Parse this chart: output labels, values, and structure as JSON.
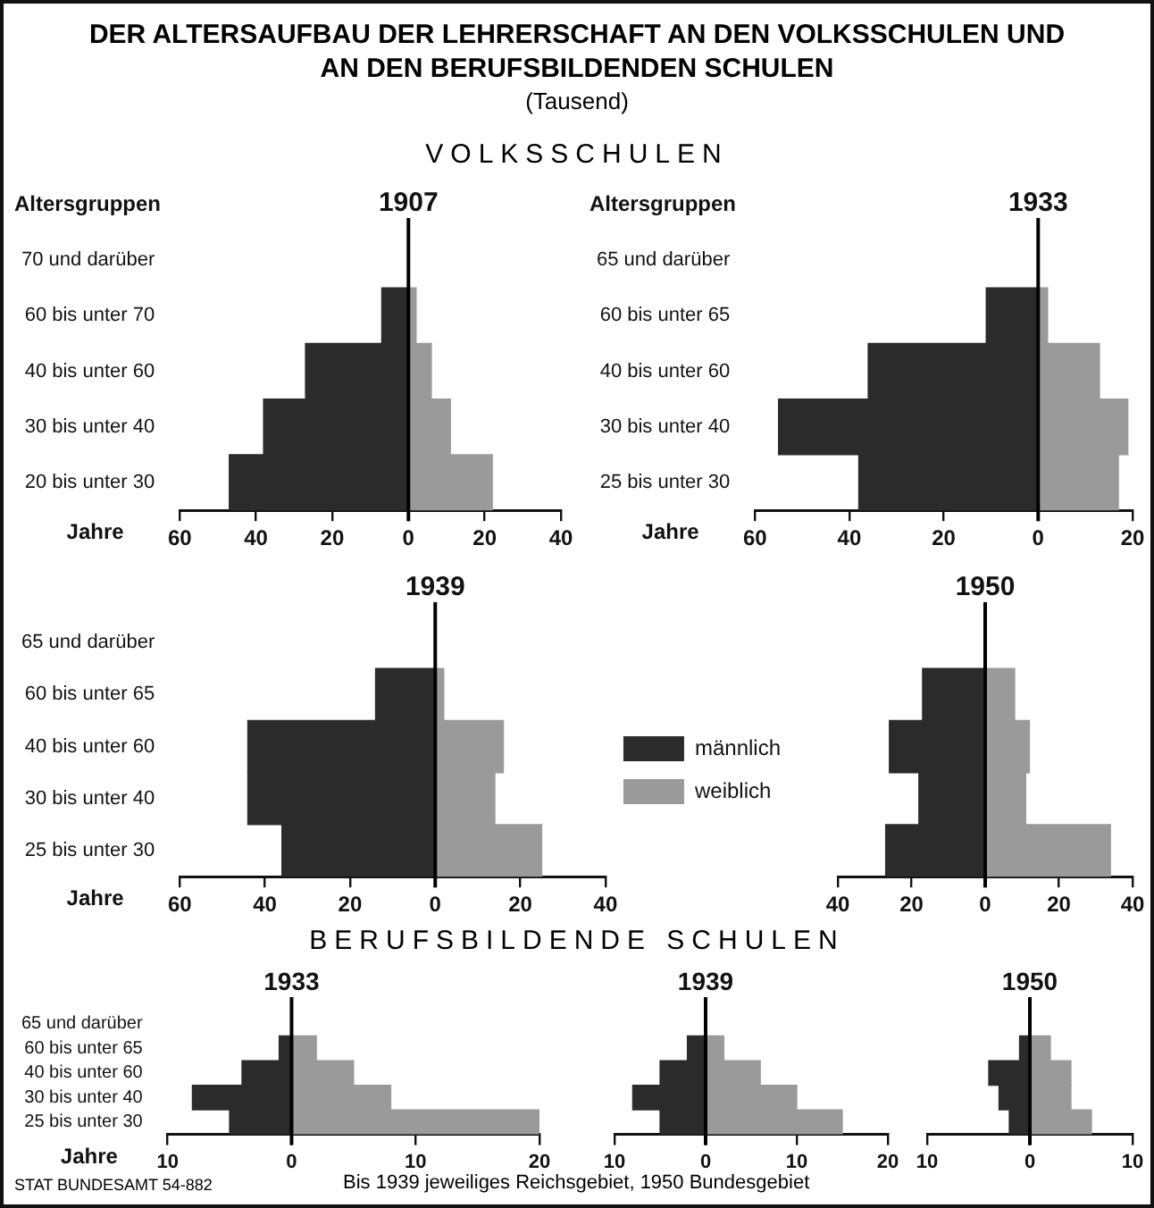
{
  "chart_data": [
    {
      "type": "other",
      "title": "DER ALTERSAUFBAU DER LEHRERSCHAFT AN DEN VOLKSSCHULEN UND AN DEN BERUFSBILDENDEN SCHULEN",
      "subtitle": "(Tausend)",
      "annotations": [
        "VOLKSSCHULEN",
        "BERUFSBILDENDE SCHULEN",
        "STAT BUNDESAMT 54-882",
        "Bis 1939 jeweiliges Reichsgebiet, 1950 Bundesgebiet"
      ]
    },
    {
      "type": "bar",
      "orientation": "horizontal",
      "stacked": true,
      "title": "1907",
      "ylabel": "Altersgruppen",
      "annotations": [
        "Jahre"
      ],
      "categories": [
        "70 und darüber",
        "60 bis unter 70",
        "40 bis unter 60",
        "30 bis unter 40",
        "20 bis unter 30"
      ],
      "series": [
        {
          "color": "#2b2b2b",
          "values": [
            0,
            -7,
            -27,
            -38,
            -47
          ]
        },
        {
          "color": "#9a9a9a",
          "values": [
            0,
            2,
            6,
            11,
            22
          ]
        }
      ],
      "xlim": [
        -60,
        40
      ],
      "xticks": [
        {
          "value": -60,
          "label": "60"
        },
        {
          "value": -40,
          "label": "40"
        },
        {
          "value": -20,
          "label": "20"
        },
        0,
        20,
        40
      ],
      "ref_lines": [
        {
          "axis": "x",
          "value": 0
        }
      ],
      "grid": false,
      "legend": false
    },
    {
      "type": "bar",
      "orientation": "horizontal",
      "stacked": true,
      "title": "1933",
      "ylabel": "Altersgruppen",
      "annotations": [
        "Jahre"
      ],
      "categories": [
        "65 und darüber",
        "60 bis unter 65",
        "40 bis unter 60",
        "30 bis unter 40",
        "25 bis unter 30"
      ],
      "series": [
        {
          "color": "#2b2b2b",
          "values": [
            0,
            -11,
            -36,
            -55,
            -38
          ]
        },
        {
          "color": "#9a9a9a",
          "values": [
            0,
            2,
            13,
            19,
            17
          ]
        }
      ],
      "xlim": [
        -60,
        20
      ],
      "xticks": [
        {
          "value": -60,
          "label": "60"
        },
        {
          "value": -40,
          "label": "40"
        },
        {
          "value": -20,
          "label": "20"
        },
        0,
        20
      ],
      "ref_lines": [
        {
          "axis": "x",
          "value": 0
        }
      ],
      "grid": false,
      "legend": false
    },
    {
      "type": "bar",
      "orientation": "horizontal",
      "stacked": true,
      "title": "1939",
      "annotations": [
        "Jahre"
      ],
      "categories": [
        "65 und darüber",
        "60 bis unter 65",
        "40 bis unter 60",
        "30 bis unter 40",
        "25 bis unter 30"
      ],
      "series": [
        {
          "name": "männlich",
          "color": "#2b2b2b",
          "values": [
            0,
            -14,
            -44,
            -44,
            -36
          ]
        },
        {
          "name": "weiblich",
          "color": "#9a9a9a",
          "values": [
            0,
            2,
            16,
            14,
            25
          ]
        }
      ],
      "xlim": [
        -60,
        40
      ],
      "xticks": [
        {
          "value": -60,
          "label": "60"
        },
        {
          "value": -40,
          "label": "40"
        },
        {
          "value": -20,
          "label": "20"
        },
        0,
        20,
        40
      ],
      "ref_lines": [
        {
          "axis": "x",
          "value": 0
        }
      ],
      "grid": false,
      "legend": "right"
    },
    {
      "type": "bar",
      "orientation": "horizontal",
      "stacked": true,
      "title": "1950",
      "tick_labels": "x",
      "categories": [
        null,
        null,
        null,
        null,
        null
      ],
      "series": [
        {
          "color": "#2b2b2b",
          "values": [
            0,
            -17,
            -26,
            -18,
            -27
          ]
        },
        {
          "color": "#9a9a9a",
          "values": [
            0,
            8,
            12,
            11,
            34
          ]
        }
      ],
      "xlim": [
        -40,
        40
      ],
      "xticks": [
        {
          "value": -40,
          "label": "40"
        },
        {
          "value": -20,
          "label": "20"
        },
        0,
        20,
        40
      ],
      "ref_lines": [
        {
          "axis": "x",
          "value": 0
        }
      ],
      "grid": false,
      "legend": false
    },
    {
      "type": "bar",
      "orientation": "horizontal",
      "stacked": true,
      "title": "1933",
      "annotations": [
        "Jahre"
      ],
      "categories": [
        "65 und darüber",
        "60 bis unter 65",
        "40 bis unter 60",
        "30 bis unter 40",
        "25 bis unter 30"
      ],
      "series": [
        {
          "color": "#2b2b2b",
          "values": [
            0,
            -1,
            -4,
            -8,
            -5
          ]
        },
        {
          "color": "#9a9a9a",
          "values": [
            0,
            2,
            5,
            8,
            20
          ]
        }
      ],
      "xlim": [
        -10,
        20
      ],
      "xticks": [
        {
          "value": -10,
          "label": "10"
        },
        0,
        10,
        20
      ],
      "ref_lines": [
        {
          "axis": "x",
          "value": 0
        }
      ],
      "grid": false,
      "legend": false
    },
    {
      "type": "bar",
      "orientation": "horizontal",
      "stacked": true,
      "title": "1939",
      "tick_labels": "x",
      "categories": [
        null,
        null,
        null,
        null,
        null
      ],
      "series": [
        {
          "color": "#2b2b2b",
          "values": [
            0,
            -2,
            -5,
            -8,
            -5
          ]
        },
        {
          "color": "#9a9a9a",
          "values": [
            0,
            2,
            6,
            10,
            15
          ]
        }
      ],
      "xlim": [
        -10,
        20
      ],
      "xticks": [
        {
          "value": -10,
          "label": "10"
        },
        0,
        10,
        20
      ],
      "ref_lines": [
        {
          "axis": "x",
          "value": 0
        }
      ],
      "grid": false,
      "legend": false
    },
    {
      "type": "bar",
      "orientation": "horizontal",
      "stacked": true,
      "title": "1950",
      "tick_labels": "x",
      "categories": [
        null,
        null,
        null,
        null,
        null
      ],
      "series": [
        {
          "color": "#2b2b2b",
          "values": [
            0,
            -1,
            -4,
            -3,
            -2
          ]
        },
        {
          "color": "#9a9a9a",
          "values": [
            0,
            2,
            4,
            4,
            6
          ]
        }
      ],
      "xlim": [
        -10,
        10
      ],
      "xticks": [
        {
          "value": -10,
          "label": "10"
        },
        0,
        10
      ],
      "ref_lines": [
        {
          "axis": "x",
          "value": 0
        }
      ],
      "grid": false,
      "legend": false
    }
  ]
}
